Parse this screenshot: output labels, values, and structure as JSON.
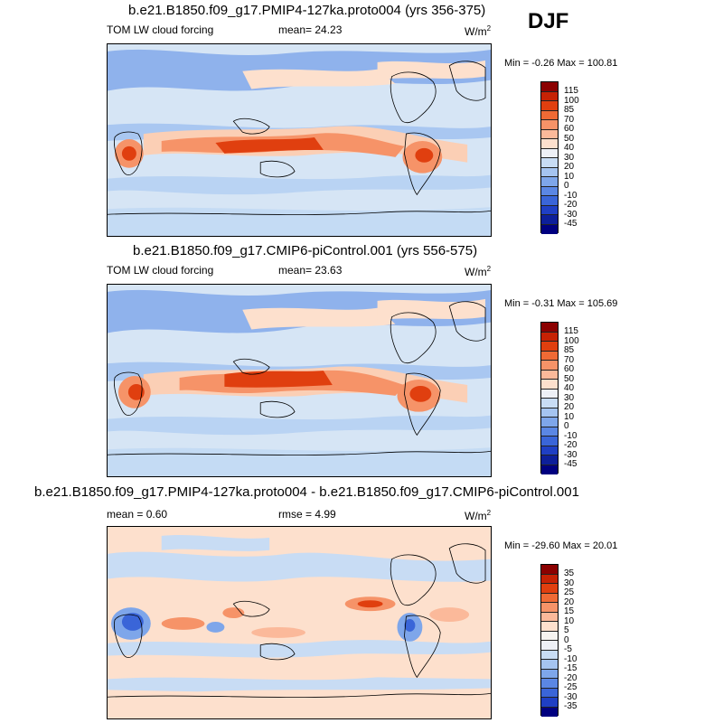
{
  "season": "DJF",
  "panels": [
    {
      "title": "b.e21.B1850.f09_g17.PMIP4-127ka.proto004 (yrs 356-375)",
      "left_label": "TOM LW cloud forcing",
      "mid_label": "mean=  24.23",
      "right_label": "",
      "units": "W/m",
      "units_sup": "2",
      "minmax": "Min =  -0.26 Max = 100.81",
      "levels": [
        "115",
        "100",
        "85",
        "70",
        "60",
        "50",
        "40",
        "30",
        "20",
        "10",
        "0",
        "-10",
        "-20",
        "-30",
        "-45"
      ],
      "colors": [
        "#8b0000",
        "#c62204",
        "#e03f0f",
        "#ef6a35",
        "#f69368",
        "#fbb99a",
        "#fde0cd",
        "#eef0f6",
        "#c8dcf4",
        "#a5c4f0",
        "#7ea6ea",
        "#5b87e4",
        "#3a65d8",
        "#1f3fc4",
        "#0d1f9a",
        "#000080"
      ]
    },
    {
      "title": "b.e21.B1850.f09_g17.CMIP6-piControl.001 (yrs 556-575)",
      "left_label": "TOM LW cloud forcing",
      "mid_label": "mean=  23.63",
      "right_label": "",
      "units": "W/m",
      "units_sup": "2",
      "minmax": "Min =  -0.31 Max = 105.69",
      "levels": [
        "115",
        "100",
        "85",
        "70",
        "60",
        "50",
        "40",
        "30",
        "20",
        "10",
        "0",
        "-10",
        "-20",
        "-30",
        "-45"
      ],
      "colors": [
        "#8b0000",
        "#c62204",
        "#e03f0f",
        "#ef6a35",
        "#f69368",
        "#fbb99a",
        "#fde0cd",
        "#eef0f6",
        "#c8dcf4",
        "#a5c4f0",
        "#7ea6ea",
        "#5b87e4",
        "#3a65d8",
        "#1f3fc4",
        "#0d1f9a",
        "#000080"
      ]
    },
    {
      "title": "b.e21.B1850.f09_g17.PMIP4-127ka.proto004 - b.e21.B1850.f09_g17.CMIP6-piControl.001",
      "left_label": "mean =   0.60",
      "mid_label": "rmse =   4.99",
      "right_label": "",
      "units": "W/m",
      "units_sup": "2",
      "minmax": "Min = -29.60 Max =  20.01",
      "levels": [
        "35",
        "30",
        "25",
        "20",
        "15",
        "10",
        "5",
        "0",
        "-5",
        "-10",
        "-15",
        "-20",
        "-25",
        "-30",
        "-35"
      ],
      "colors": [
        "#8b0000",
        "#c62204",
        "#e03f0f",
        "#ef6a35",
        "#f69368",
        "#fbb99a",
        "#fde0cd",
        "#f6f3f0",
        "#eef0f6",
        "#c8dcf4",
        "#a5c4f0",
        "#7ea6ea",
        "#5b87e4",
        "#3a65d8",
        "#1f3fc4",
        "#000080"
      ]
    }
  ]
}
